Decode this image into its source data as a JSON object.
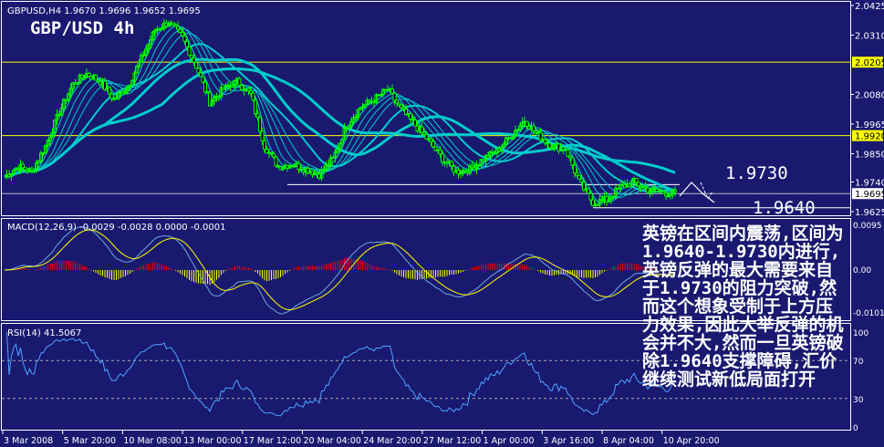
{
  "chart_data": {
    "type": "candlestick",
    "symbol_header": "GBPUSD,H4  1.9670 1.9696 1.9652 1.9695",
    "title": "GBP/USD 4h",
    "closes": [
      1.976,
      1.98,
      1.978,
      1.988,
      2.001,
      2.012,
      2.016,
      2.013,
      2.006,
      2.011,
      2.022,
      2.033,
      2.036,
      2.03,
      2.019,
      2.005,
      2.01,
      2.013,
      2.008,
      1.988,
      1.98,
      1.981,
      1.979,
      1.977,
      1.983,
      1.996,
      2.003,
      2.006,
      2.01,
      2.002,
      1.996,
      1.99,
      1.983,
      1.978,
      1.979,
      1.983,
      1.986,
      1.992,
      1.998,
      1.992,
      1.988,
      1.987,
      1.974,
      1.966,
      1.967,
      1.972,
      1.974,
      1.971,
      1.97,
      1.9695
    ],
    "ylim": [
      1.9625,
      2.0425
    ],
    "y_ticks": [
      "2.0425",
      "2.0310",
      "2.0080",
      "1.9965",
      "1.9850",
      "1.9740",
      "1.9625"
    ],
    "x_ticks": [
      "3 Mar 2008",
      "5 Mar 20:00",
      "10 Mar 08:00",
      "13 Mar 00:00",
      "17 Mar 12:00",
      "20 Mar 04:00",
      "24 Mar 20:00",
      "27 Mar 12:00",
      "1 Apr 00:00",
      "3 Apr 16:00",
      "8 Apr 04:00",
      "10 Apr 20:00"
    ],
    "levels": {
      "resistance_1": "2.0205",
      "resistance_2": "1.9920",
      "current": "1.9695",
      "range_high": "1.9730",
      "range_low": "1.9640"
    },
    "colors": {
      "bg": "#191970",
      "bull": "#00ff00",
      "bear": "#ffffff",
      "ma": "#00cccc",
      "level": "#ffff00",
      "macd_pos": "#ff0000",
      "macd_neg": "#ffff00"
    },
    "macd": {
      "label": "MACD(12,26,9) -0.0029 -0.0028 0.0000 -0.0001",
      "ticks": [
        "0.0095",
        "0.00",
        "-0.0101"
      ]
    },
    "rsi": {
      "label": "RSI(14) 41.5067",
      "ticks": [
        "100",
        "70",
        "30",
        "0"
      ]
    }
  },
  "note": "英镑在区间内震荡,区间为1.9640-1.9730内进行,英镑反弹的最大需要来自于1.9730的阻力突破,然而这个想象受制于上方压力效果,因此大举反弹的机会并不大,然而一旦英镑破除1.9640支撑障碍,汇价继续测试新低局面打开"
}
